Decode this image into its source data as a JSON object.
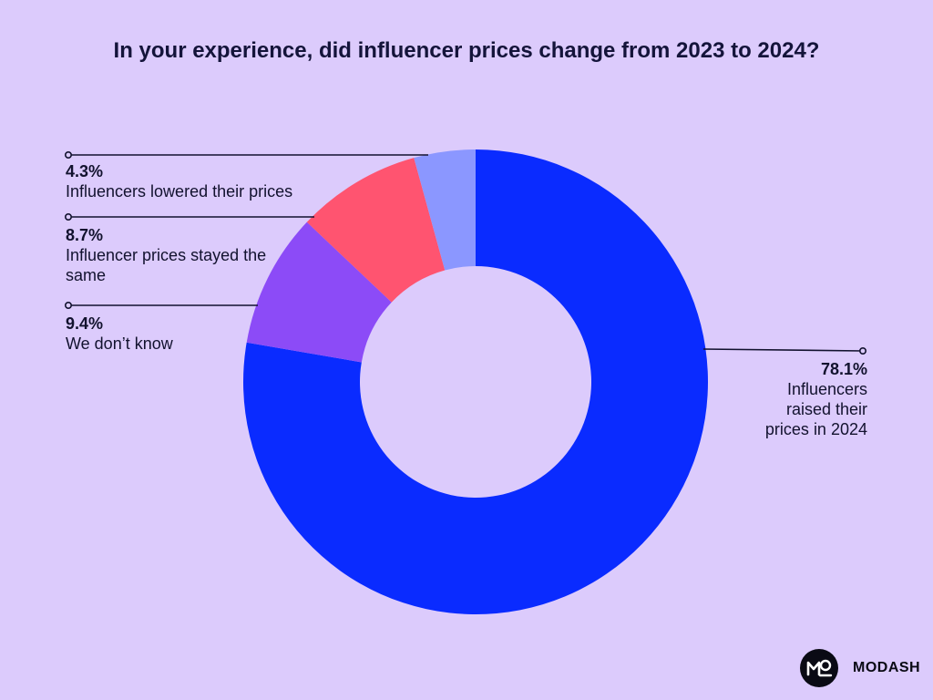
{
  "chart_data": {
    "type": "pie",
    "title": "In your experience, did influencer prices change from 2023 to 2024?",
    "slices": [
      {
        "value": 78.1,
        "pct_label": "78.1%",
        "label": "Influencers raised their prices in 2024",
        "color": "#0a2bff"
      },
      {
        "value": 9.4,
        "pct_label": "9.4%",
        "label": "We don’t know",
        "color": "#8c4bf7"
      },
      {
        "value": 8.7,
        "pct_label": "8.7%",
        "label": "Influencer prices stayed the same",
        "color": "#ff5470"
      },
      {
        "value": 4.3,
        "pct_label": "4.3%",
        "label": "Influencers lowered their prices",
        "color": "#8b97ff"
      }
    ]
  },
  "brand": {
    "name": "MODASH",
    "logo_text": "MO"
  }
}
